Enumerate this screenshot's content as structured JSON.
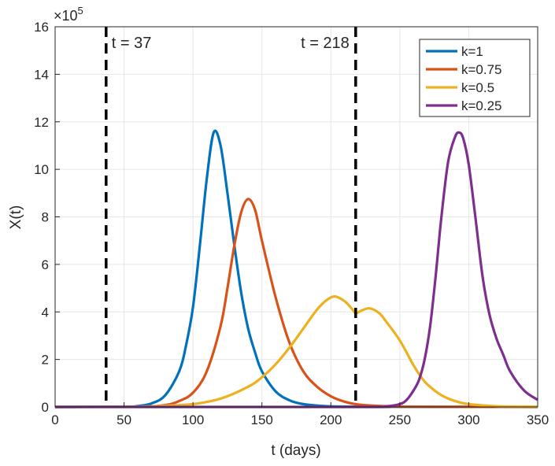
{
  "chart_data": {
    "type": "line",
    "title": "",
    "xlabel": "t (days)",
    "ylabel": "X(t)",
    "y_exponent_label": "×10",
    "y_exponent_power": "5",
    "xlim": [
      0,
      350
    ],
    "ylim": [
      0,
      16
    ],
    "xticks": [
      0,
      50,
      100,
      150,
      200,
      250,
      300,
      350
    ],
    "yticks": [
      0,
      2,
      4,
      6,
      8,
      10,
      12,
      14,
      16
    ],
    "grid": true,
    "legend_position": "top-right",
    "vlines": [
      {
        "x": 37,
        "label": "t = 37"
      },
      {
        "x": 218,
        "label": "t = 218"
      }
    ],
    "series": [
      {
        "name": "k=1",
        "color": "#0072BD",
        "points": [
          [
            0,
            0
          ],
          [
            50,
            0.01
          ],
          [
            60,
            0.04
          ],
          [
            70,
            0.15
          ],
          [
            80,
            0.5
          ],
          [
            90,
            1.5
          ],
          [
            95,
            2.6
          ],
          [
            100,
            4.2
          ],
          [
            105,
            6.8
          ],
          [
            110,
            9.6
          ],
          [
            115,
            11.55
          ],
          [
            120,
            11.0
          ],
          [
            125,
            9.0
          ],
          [
            130,
            6.8
          ],
          [
            135,
            4.8
          ],
          [
            140,
            3.3
          ],
          [
            145,
            2.3
          ],
          [
            150,
            1.5
          ],
          [
            160,
            0.65
          ],
          [
            170,
            0.28
          ],
          [
            180,
            0.12
          ],
          [
            195,
            0.04
          ],
          [
            220,
            0.01
          ],
          [
            350,
            0
          ]
        ]
      },
      {
        "name": "k=0.75",
        "color": "#D95319",
        "points": [
          [
            0,
            0
          ],
          [
            60,
            0.01
          ],
          [
            80,
            0.08
          ],
          [
            90,
            0.25
          ],
          [
            100,
            0.6
          ],
          [
            110,
            1.5
          ],
          [
            120,
            3.4
          ],
          [
            125,
            5.0
          ],
          [
            130,
            6.8
          ],
          [
            135,
            8.2
          ],
          [
            140,
            8.75
          ],
          [
            145,
            8.3
          ],
          [
            150,
            7.0
          ],
          [
            160,
            4.6
          ],
          [
            170,
            2.7
          ],
          [
            180,
            1.5
          ],
          [
            190,
            0.85
          ],
          [
            200,
            0.45
          ],
          [
            210,
            0.22
          ],
          [
            220,
            0.1
          ],
          [
            240,
            0.03
          ],
          [
            260,
            0.01
          ],
          [
            350,
            0
          ]
        ]
      },
      {
        "name": "k=0.5",
        "color": "#EDB120",
        "points": [
          [
            0,
            0
          ],
          [
            60,
            0.01
          ],
          [
            80,
            0.05
          ],
          [
            100,
            0.12
          ],
          [
            120,
            0.35
          ],
          [
            140,
            0.85
          ],
          [
            150,
            1.25
          ],
          [
            160,
            1.8
          ],
          [
            170,
            2.5
          ],
          [
            180,
            3.3
          ],
          [
            190,
            4.1
          ],
          [
            197,
            4.5
          ],
          [
            203,
            4.65
          ],
          [
            210,
            4.45
          ],
          [
            215,
            4.15
          ],
          [
            218,
            3.95
          ],
          [
            222,
            4.05
          ],
          [
            228,
            4.15
          ],
          [
            235,
            3.95
          ],
          [
            240,
            3.6
          ],
          [
            250,
            2.8
          ],
          [
            260,
            1.75
          ],
          [
            265,
            1.3
          ],
          [
            270,
            0.95
          ],
          [
            280,
            0.5
          ],
          [
            290,
            0.25
          ],
          [
            300,
            0.12
          ],
          [
            320,
            0.03
          ],
          [
            350,
            0.01
          ]
        ]
      },
      {
        "name": "k=0.25",
        "color": "#7E2F8E",
        "points": [
          [
            0,
            0
          ],
          [
            220,
            0
          ],
          [
            240,
            0.03
          ],
          [
            250,
            0.12
          ],
          [
            255,
            0.3
          ],
          [
            260,
            0.7
          ],
          [
            264,
            1.15
          ],
          [
            268,
            2.0
          ],
          [
            272,
            3.4
          ],
          [
            276,
            5.5
          ],
          [
            280,
            7.9
          ],
          [
            285,
            10.3
          ],
          [
            290,
            11.35
          ],
          [
            293,
            11.55
          ],
          [
            296,
            11.3
          ],
          [
            300,
            10.2
          ],
          [
            305,
            7.9
          ],
          [
            310,
            5.5
          ],
          [
            315,
            3.9
          ],
          [
            320,
            2.9
          ],
          [
            325,
            2.2
          ],
          [
            330,
            1.5
          ],
          [
            340,
            0.7
          ],
          [
            350,
            0.3
          ]
        ]
      }
    ]
  }
}
